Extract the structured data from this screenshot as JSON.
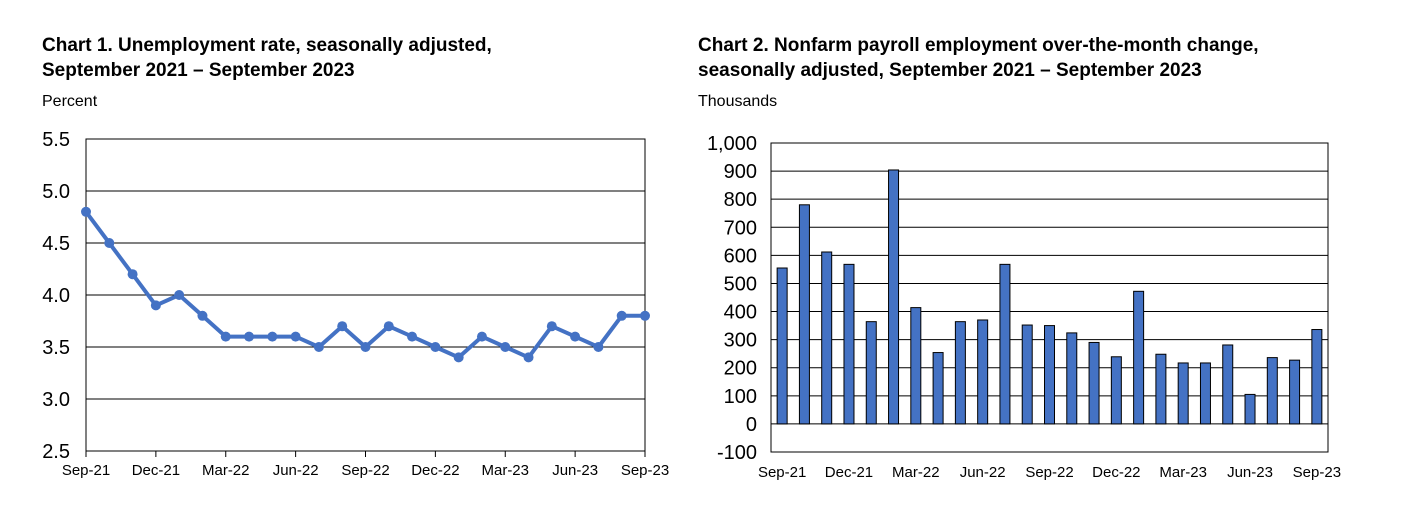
{
  "colors": {
    "series": "#4472C4",
    "bar_fill": "#4472C4",
    "bar_stroke": "#000000",
    "grid": "#000000"
  },
  "chart_data": [
    {
      "type": "line",
      "title_lines": [
        "Chart 1. Unemployment rate, seasonally adjusted,",
        "September 2021 – September 2023"
      ],
      "ylabel": "Percent",
      "xlabel": "",
      "ylim": [
        2.5,
        5.5
      ],
      "yticks": [
        "5.5",
        "5.0",
        "4.5",
        "4.0",
        "3.5",
        "3.0",
        "2.5"
      ],
      "ytick_values": [
        5.5,
        5.0,
        4.5,
        4.0,
        3.5,
        3.0,
        2.5
      ],
      "xtick_labels": [
        "Sep-21",
        "Dec-21",
        "Mar-22",
        "Jun-22",
        "Sep-22",
        "Dec-22",
        "Mar-23",
        "Jun-23",
        "Sep-23"
      ],
      "xtick_index": [
        0,
        3,
        6,
        9,
        12,
        15,
        18,
        21,
        24
      ],
      "grid": true,
      "x": [
        "2021-09",
        "2021-10",
        "2021-11",
        "2021-12",
        "2022-01",
        "2022-02",
        "2022-03",
        "2022-04",
        "2022-05",
        "2022-06",
        "2022-07",
        "2022-08",
        "2022-09",
        "2022-10",
        "2022-11",
        "2022-12",
        "2023-01",
        "2023-02",
        "2023-03",
        "2023-04",
        "2023-05",
        "2023-06",
        "2023-07",
        "2023-08",
        "2023-09"
      ],
      "values": [
        4.8,
        4.5,
        4.2,
        3.9,
        4.0,
        3.8,
        3.6,
        3.6,
        3.6,
        3.6,
        3.5,
        3.7,
        3.5,
        3.7,
        3.6,
        3.5,
        3.4,
        3.6,
        3.5,
        3.4,
        3.7,
        3.6,
        3.5,
        3.8,
        3.8
      ]
    },
    {
      "type": "bar",
      "title_lines": [
        "Chart 2. Nonfarm payroll employment over-the-month change,",
        "seasonally adjusted, September 2021 – September 2023"
      ],
      "ylabel": "Thousands",
      "xlabel": "",
      "ylim": [
        -100,
        1000
      ],
      "yticks": [
        "1,000",
        "900",
        "800",
        "700",
        "600",
        "500",
        "400",
        "300",
        "200",
        "100",
        "0",
        "-100"
      ],
      "ytick_values": [
        1000,
        900,
        800,
        700,
        600,
        500,
        400,
        300,
        200,
        100,
        0,
        -100
      ],
      "xtick_labels": [
        "Sep-21",
        "Dec-21",
        "Mar-22",
        "Jun-22",
        "Sep-22",
        "Dec-22",
        "Mar-23",
        "Jun-23",
        "Sep-23"
      ],
      "xtick_index": [
        0,
        3,
        6,
        9,
        12,
        15,
        18,
        21,
        24
      ],
      "grid": true,
      "x": [
        "2021-09",
        "2021-10",
        "2021-11",
        "2021-12",
        "2022-01",
        "2022-02",
        "2022-03",
        "2022-04",
        "2022-05",
        "2022-06",
        "2022-07",
        "2022-08",
        "2022-09",
        "2022-10",
        "2022-11",
        "2022-12",
        "2023-01",
        "2023-02",
        "2023-03",
        "2023-04",
        "2023-05",
        "2023-06",
        "2023-07",
        "2023-08",
        "2023-09"
      ],
      "values": [
        555,
        780,
        612,
        568,
        364,
        904,
        414,
        254,
        364,
        370,
        568,
        352,
        350,
        324,
        290,
        239,
        472,
        248,
        217,
        217,
        281,
        105,
        236,
        227,
        336
      ]
    }
  ]
}
